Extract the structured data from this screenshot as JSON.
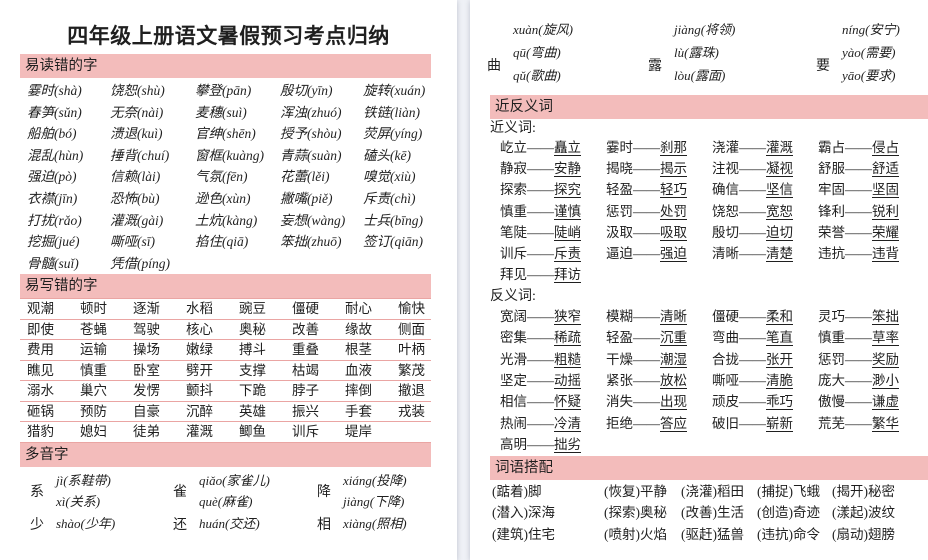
{
  "dash": "——",
  "colors": {
    "banner_pink": "#f3bcbb",
    "table_line_pink": "#eaa5a3",
    "page_background": "#ffffff",
    "viewer_background": "#eff1f6",
    "text": "#1f1f1f"
  },
  "left": {
    "title": "四年级上册语文暑假预习考点归纳",
    "misread": {
      "header": "易读错的字",
      "rows": [
        [
          "霎时(shà)",
          "饶恕(shù)",
          "攀登(pān)",
          "殷切(yīn)",
          "旋转(xuán)"
        ],
        [
          "春笋(sǔn)",
          "无奈(nài)",
          "麦穗(suì)",
          "浑浊(zhuó)",
          "铁链(liàn)"
        ],
        [
          "船舶(bó)",
          "溃退(kuì)",
          "官绅(shēn)",
          "授予(shòu)",
          "荧屏(yíng)"
        ],
        [
          "混乱(hùn)",
          "捶背(chuí)",
          "窗框(kuàng)",
          "青蒜(suàn)",
          "磕头(kē)"
        ],
        [
          "强迫(pò)",
          "信赖(lài)",
          "气氛(fēn)",
          "花蕾(lěi)",
          "嗅觉(xiù)"
        ],
        [
          "衣襟(jīn)",
          "恐怖(bù)",
          "逊色(xùn)",
          "撇嘴(piě)",
          "斥责(chì)"
        ],
        [
          "打扰(rǎo)",
          "灌溉(gài)",
          "土炕(kàng)",
          "妄想(wàng)",
          "士兵(bīng)"
        ],
        [
          "挖掘(jué)",
          "嘶哑(sī)",
          "掐住(qiā)",
          "笨拙(zhuō)",
          "签订(qiān)"
        ],
        [
          "骨髓(suǐ)",
          "凭借(píng)"
        ]
      ]
    },
    "miswrite": {
      "header": "易写错的字",
      "rows": [
        [
          "观潮",
          "顿时",
          "逐渐",
          "水稻",
          "豌豆",
          "僵硬",
          "耐心",
          "愉快"
        ],
        [
          "即使",
          "苍蝇",
          "驾驶",
          "核心",
          "奥秘",
          "改善",
          "缘故",
          "侧面"
        ],
        [
          "费用",
          "运输",
          "操场",
          "嫩绿",
          "搏斗",
          "重叠",
          "根茎",
          "叶柄"
        ],
        [
          "瞧见",
          "慎重",
          "卧室",
          "劈开",
          "支撑",
          "枯竭",
          "血液",
          "繁茂"
        ],
        [
          "溺水",
          "巢穴",
          "发愣",
          "颤抖",
          "下跪",
          "脖子",
          "摔倒",
          "撤退"
        ],
        [
          "砸锅",
          "预防",
          "自豪",
          "沉醉",
          "英雄",
          "振兴",
          "手套",
          "戎装"
        ],
        [
          "猎豹",
          "媳妇",
          "徒弟",
          "灌溉",
          "鲫鱼",
          "训斥",
          "堤岸"
        ]
      ]
    },
    "polyphone": {
      "header": "多音字",
      "rows": [
        [
          {
            "char": "系",
            "readings": [
              "jì(系鞋带)",
              "xì(关系)"
            ]
          },
          {
            "char": "雀",
            "readings": [
              "qiǎo(家雀儿)",
              "què(麻雀)"
            ]
          },
          {
            "char": "降",
            "readings": [
              "xiáng(投降)",
              "jiàng(下降)"
            ]
          }
        ],
        [
          {
            "char": "少",
            "readings": [
              "shào(少年)"
            ]
          },
          {
            "char": "还",
            "readings": [
              "huán(交还)"
            ]
          },
          {
            "char": "相",
            "readings": [
              "xiàng(照相)"
            ]
          }
        ]
      ]
    }
  },
  "right": {
    "polyphone_top": {
      "carryover": [
        "xuàn(旋风)",
        "jiàng(将领)",
        "níng(安宁)"
      ],
      "groups": [
        {
          "char": "曲",
          "readings": [
            "qū(弯曲)",
            "qǔ(歌曲)"
          ]
        },
        {
          "char": "露",
          "readings": [
            "lù(露珠)",
            "lòu(露面)"
          ]
        },
        {
          "char": "要",
          "readings": [
            "yào(需要)",
            "yāo(要求)"
          ]
        }
      ]
    },
    "synonyms_antonyms": {
      "header": "近反义词",
      "synonyms_label": "近义词:",
      "synonym_rows": [
        [
          [
            "屹立",
            "矗立"
          ],
          [
            "霎时",
            "刹那"
          ],
          [
            "浇灌",
            "灌溉"
          ],
          [
            "霸占",
            "侵占"
          ]
        ],
        [
          [
            "静寂",
            "安静"
          ],
          [
            "揭晓",
            "揭示"
          ],
          [
            "注视",
            "凝视"
          ],
          [
            "舒服",
            "舒适"
          ]
        ],
        [
          [
            "探索",
            "探究"
          ],
          [
            "轻盈",
            "轻巧"
          ],
          [
            "确信",
            "坚信"
          ],
          [
            "牢固",
            "坚固"
          ]
        ],
        [
          [
            "慎重",
            "谨慎"
          ],
          [
            "惩罚",
            "处罚"
          ],
          [
            "饶恕",
            "宽恕"
          ],
          [
            "锋利",
            "锐利"
          ]
        ],
        [
          [
            "笔陡",
            "陡峭"
          ],
          [
            "汲取",
            "吸取"
          ],
          [
            "殷切",
            "迫切"
          ],
          [
            "荣誉",
            "荣耀"
          ]
        ],
        [
          [
            "训斥",
            "斥责"
          ],
          [
            "逼迫",
            "强迫"
          ],
          [
            "清晰",
            "清楚"
          ],
          [
            "违抗",
            "违背"
          ]
        ],
        [
          [
            "拜见",
            "拜访"
          ]
        ]
      ],
      "antonyms_label": "反义词:",
      "antonym_rows": [
        [
          [
            "宽阔",
            "狭窄"
          ],
          [
            "模糊",
            "清晰"
          ],
          [
            "僵硬",
            "柔和"
          ],
          [
            "灵巧",
            "笨拙"
          ]
        ],
        [
          [
            "密集",
            "稀疏"
          ],
          [
            "轻盈",
            "沉重"
          ],
          [
            "弯曲",
            "笔直"
          ],
          [
            "慎重",
            "草率"
          ]
        ],
        [
          [
            "光滑",
            "粗糙"
          ],
          [
            "干燥",
            "潮湿"
          ],
          [
            "合拢",
            "张开"
          ],
          [
            "惩罚",
            "奖励"
          ]
        ],
        [
          [
            "坚定",
            "动摇"
          ],
          [
            "紧张",
            "放松"
          ],
          [
            "嘶哑",
            "清脆"
          ],
          [
            "庞大",
            "渺小"
          ]
        ],
        [
          [
            "相信",
            "怀疑"
          ],
          [
            "消失",
            "出现"
          ],
          [
            "顽皮",
            "乖巧"
          ],
          [
            "傲慢",
            "谦虚"
          ]
        ],
        [
          [
            "热闹",
            "冷清"
          ],
          [
            "拒绝",
            "答应"
          ],
          [
            "破旧",
            "崭新"
          ],
          [
            "荒芜",
            "繁华"
          ]
        ],
        [
          [
            "高明",
            "拙劣"
          ]
        ]
      ]
    },
    "collocations": {
      "header": "词语搭配",
      "rows": [
        [
          "(踮着)脚",
          "(恢复)平静",
          "(浇灌)稻田",
          "(捕捉)飞蛾",
          "(揭开)秘密"
        ],
        [
          "(潜入)深海",
          "(探索)奥秘",
          "(改善)生活",
          "(创造)奇迹",
          "(漾起)波纹"
        ],
        [
          "(建筑)住宅",
          "(喷射)火焰",
          "(驱赶)猛兽",
          "(违抗)命令",
          "(扇动)翅膀"
        ]
      ]
    }
  }
}
